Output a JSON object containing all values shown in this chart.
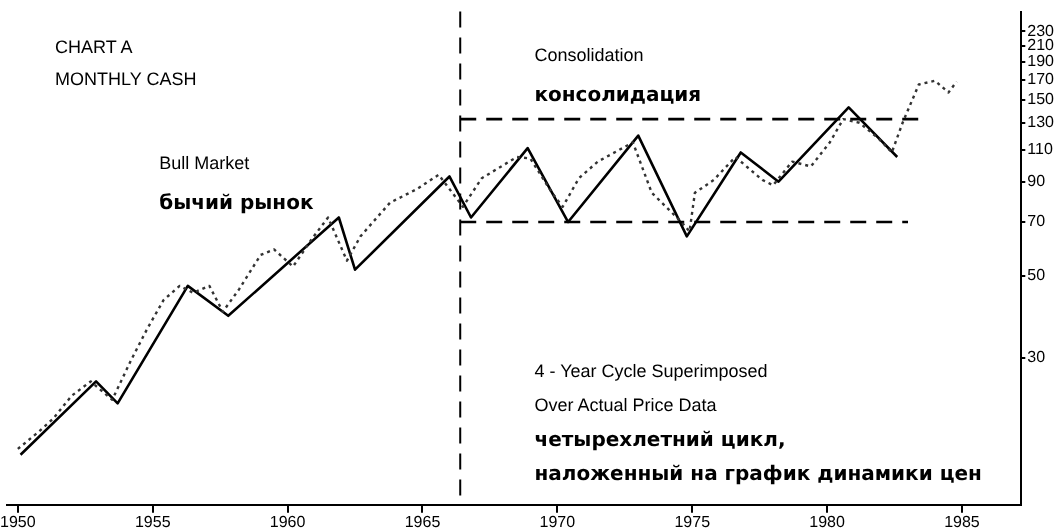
{
  "chart_data": {
    "type": "line",
    "title": "CHART A",
    "subtitle": "MONTHLY CASH",
    "annotations": [
      "Bull Market",
      "бычий рынок",
      "Consolidation",
      "консолидация",
      "4 - Year Cycle Superimposed",
      "Over Actual Price Data",
      "четырехлетний цикл,",
      "наложенный на график динамики цен"
    ],
    "series": [
      {
        "type": "line",
        "color": "#333333",
        "line_style": "dotted",
        "x": [
          1950.0,
          1950.8,
          1951.3,
          1952.0,
          1952.7,
          1953.5,
          1954.2,
          1954.8,
          1955.4,
          1956.0,
          1956.5,
          1957.1,
          1957.6,
          1958.2,
          1959.0,
          1959.5,
          1960.2,
          1960.9,
          1961.5,
          1962.2,
          1962.7,
          1963.8,
          1964.8,
          1965.6,
          1966.5,
          1967.2,
          1968.5,
          1969.0,
          1969.8,
          1970.2,
          1970.8,
          1971.5,
          1972.8,
          1973.5,
          1974.6,
          1974.9,
          1975.1,
          1975.8,
          1976.6,
          1977.6,
          1978.0,
          1978.7,
          1979.4,
          1980.1,
          1980.6,
          1981.2,
          1981.9,
          1982.4,
          1982.8,
          1983.4,
          1984.0,
          1984.5,
          1984.8
        ],
        "values": [
          17,
          19,
          20.5,
          23.7,
          25.9,
          23.1,
          29.6,
          36,
          43,
          47,
          45,
          47,
          40,
          46,
          57,
          59,
          53,
          63,
          72,
          55,
          64,
          79,
          86,
          94,
          77,
          92,
          105,
          104,
          84,
          77,
          92,
          102,
          115,
          84,
          70,
          66,
          84,
          91,
          105,
          91,
          88,
          102,
          99,
          115,
          133,
          130,
          118,
          108,
          130,
          165,
          169,
          157,
          168
        ]
      },
      {
        "type": "line",
        "color": "#000000",
        "line_style": "solid",
        "x": [
          1950.1,
          1952.9,
          1953.7,
          1956.3,
          1957.8,
          1961.9,
          1962.5,
          1966.0,
          1966.8,
          1968.9,
          1970.4,
          1973.0,
          1974.8,
          1976.8,
          1978.2,
          1980.8,
          1982.6
        ],
        "values": [
          16.4,
          25.9,
          22.6,
          47,
          39,
          72,
          52,
          93,
          72,
          111,
          70,
          120,
          64,
          108,
          90,
          143,
          105
        ]
      },
      {
        "type": "line",
        "color": "#000000",
        "line_style": "dashed",
        "x": [
          1966.4,
          1983.6
        ],
        "values": [
          133,
          133
        ]
      },
      {
        "type": "line",
        "color": "#000000",
        "line_style": "dashed",
        "x": [
          1966.4,
          1983.0
        ],
        "values": [
          70,
          70
        ]
      }
    ],
    "ref_lines": [
      {
        "axis": "x",
        "value": 1966.4,
        "line_style": "dashed",
        "color": "#000000"
      }
    ],
    "xlim": [
      1949.6,
      1987.2
    ],
    "xticks": [
      1950,
      1955,
      1960,
      1965,
      1970,
      1975,
      1980,
      1985
    ],
    "ylim": [
      12,
      260
    ],
    "yticks": [
      30,
      50,
      70,
      90,
      110,
      130,
      150,
      170,
      190,
      210,
      230
    ],
    "log": "y",
    "grid": false,
    "legend": false,
    "marker": "none"
  }
}
